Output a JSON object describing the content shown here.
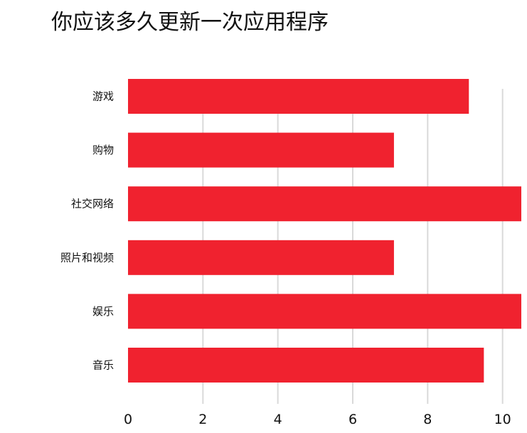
{
  "title": "你应该多久更新一次应用程序",
  "chart_data": {
    "type": "bar",
    "orientation": "horizontal",
    "title": "你应该多久更新一次应用程序",
    "categories": [
      "游戏",
      "购物",
      "社交网络",
      "照片和视频",
      "娱乐",
      "音乐"
    ],
    "values": [
      9.1,
      7.1,
      10.5,
      7.1,
      10.5,
      9.5
    ],
    "xlim": [
      0,
      10.5
    ],
    "xticks": [
      "0",
      "2",
      "4",
      "6",
      "8",
      "10"
    ],
    "xlabel": "",
    "ylabel": "",
    "grid": "vertical",
    "bar_color": "#f0222f",
    "grid_color": "#d9d9d9"
  }
}
